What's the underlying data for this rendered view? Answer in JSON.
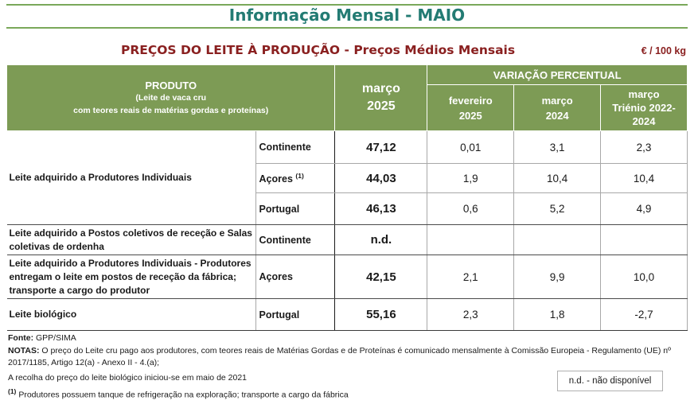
{
  "header": {
    "title": "Informação Mensal - MAIO",
    "subtitle": "PREÇOS DO LEITE À PRODUÇÃO - Preços Médios Mensais",
    "unit": "€ / 100 kg"
  },
  "table": {
    "col_product_title": "PRODUTO",
    "col_product_sub1": "(Leite de vaca cru",
    "col_product_sub2": "com teores reais de matérias gordas e proteínas)",
    "col_month_line1": "março",
    "col_month_line2": "2025",
    "variation_title": "VARIAÇÃO PERCENTUAL",
    "var_cols": [
      {
        "line1": "fevereiro",
        "line2": "2025"
      },
      {
        "line1": "março",
        "line2": "2024"
      },
      {
        "line1": "março",
        "line2": "Triénio 2022-",
        "line3": "2024"
      }
    ],
    "rows": [
      {
        "label": "Leite adquirido a Produtores Individuais",
        "region": "Continente",
        "price": "47,12",
        "v1": "0,01",
        "v2": "3,1",
        "v3": "2,3"
      },
      {
        "region": "Açores",
        "region_sup": "(1)",
        "price": "44,03",
        "v1": "1,9",
        "v2": "10,4",
        "v3": "10,4"
      },
      {
        "region": "Portugal",
        "price": "46,13",
        "v1": "0,6",
        "v2": "5,2",
        "v3": "4,9"
      },
      {
        "label": "Leite adquirido a Postos coletivos de receção e Salas coletivas de ordenha",
        "region": "Continente",
        "price": "n.d.",
        "v1": "",
        "v2": "",
        "v3": ""
      },
      {
        "label": "Leite adquirido a Produtores Individuais - Produtores entregam o leite em postos de receção da fábrica; transporte a cargo do produtor",
        "region": "Açores",
        "price": "42,15",
        "v1": "2,1",
        "v2": "9,9",
        "v3": "10,0"
      },
      {
        "label": "Leite biológico",
        "region": "Portugal",
        "price": "55,16",
        "v1": "2,3",
        "v2": "1,8",
        "v3": "-2,7"
      }
    ]
  },
  "footer": {
    "source_label": "Fonte:",
    "source": "GPP/SIMA",
    "notes_label": "NOTAS:",
    "notes": "O preço do Leite cru pago aos produtores, com teores reais de Matérias Gordas e de Proteínas é comunicado mensalmente à Comissão Europeia - Regulamento (UE) nº 2017/1185, Artigo 12(a) - Anexo II - 4.(a);",
    "note2": "A recolha do preço do leite biológico iniciou-se em maio de 2021",
    "note3_mark": "(1)",
    "note3": "Produtores possuem tanque de refrigeração na exploração; transporte a cargo da fábrica",
    "legend": "n.d. - não disponível"
  },
  "colors": {
    "title": "#237b73",
    "rule": "#7aa85a",
    "subtitle": "#8a2020",
    "header_bg": "#7d9b55"
  }
}
